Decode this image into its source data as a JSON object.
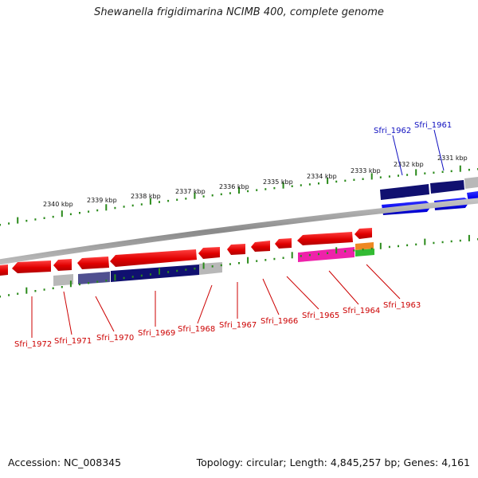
{
  "title": "Shewanella frigidimarina NCIMB 400, complete genome",
  "footer": {
    "accession": "Accession: NC_008345",
    "topology": "Topology: circular; Length: 4,845,257 bp; Genes: 4,161"
  },
  "colors": {
    "forward_gene": "#0000ee",
    "reverse_gene": "#ee0000",
    "forward_label": "#1010c0",
    "reverse_label": "#cc0000",
    "tick": "#2a8a1a",
    "backbone": "#8c8c8c",
    "cds_dark": "#101070",
    "cds_grey": "#b8b8b8",
    "pink": "#ee22aa",
    "orange": "#ee8822",
    "green": "#33bb33"
  },
  "scale_labels": [
    "2340 kbp",
    "2339 kbp",
    "2338 kbp",
    "2337 kbp",
    "2336 kbp",
    "2335 kbp",
    "2334 kbp",
    "2333 kbp",
    "2332 kbp",
    "2331 kbp"
  ],
  "gene_labels_forward": [
    "Sfri_1962",
    "Sfri_1961"
  ],
  "gene_labels_reverse": [
    "Sfri_1972",
    "Sfri_1971",
    "Sfri_1970",
    "Sfri_1969",
    "Sfri_1968",
    "Sfri_1967",
    "Sfri_1966",
    "Sfri_1965",
    "Sfri_1964",
    "Sfri_1963"
  ]
}
